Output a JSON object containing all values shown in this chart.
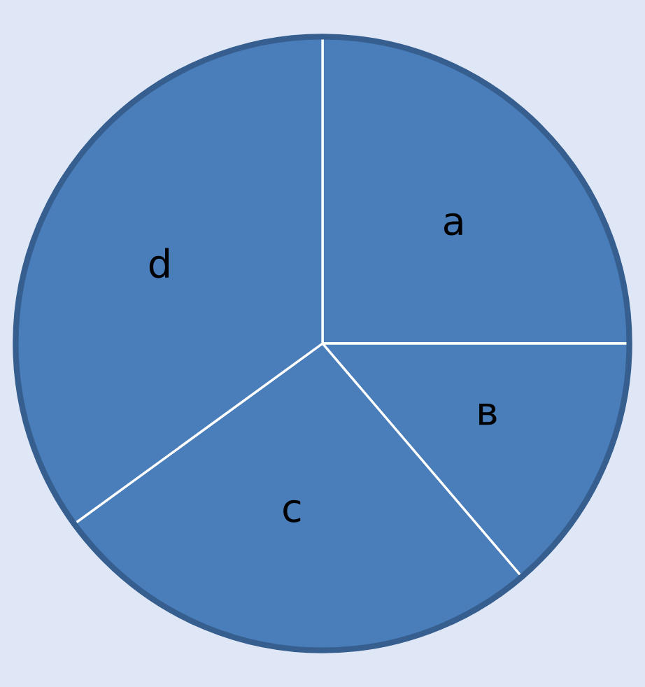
{
  "chart_data": {
    "type": "pie",
    "categories": [
      "a",
      "в",
      "c",
      "d"
    ],
    "values": [
      25,
      13.75,
      26.25,
      35
    ],
    "colors": [
      "#4a7ebb",
      "#4a7ebb",
      "#4a7ebb",
      "#4a7ebb"
    ],
    "legend": false
  }
}
